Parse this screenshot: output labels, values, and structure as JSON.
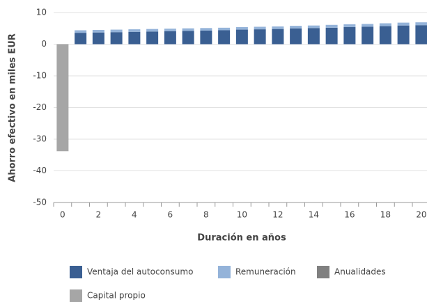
{
  "chart_data": {
    "type": "bar",
    "stacked": true,
    "xlabel": "Duración en años",
    "ylabel": "Ahorro efectivo en miles EUR",
    "x": [
      0,
      1,
      2,
      3,
      4,
      5,
      6,
      7,
      8,
      9,
      10,
      11,
      12,
      13,
      14,
      15,
      16,
      17,
      18,
      19,
      20
    ],
    "xticks": [
      0,
      2,
      4,
      6,
      8,
      10,
      12,
      14,
      16,
      18,
      20
    ],
    "ylim": [
      -50,
      10
    ],
    "yticks": [
      -50,
      -40,
      -30,
      -20,
      -10,
      0,
      10
    ],
    "grid": true,
    "series": [
      {
        "name": "Ventaja del autoconsumo",
        "color": "#3a5f92",
        "values": [
          null,
          3.6,
          3.7,
          3.8,
          3.9,
          4.0,
          4.1,
          4.2,
          4.3,
          4.4,
          4.6,
          4.7,
          4.8,
          5.0,
          5.1,
          5.2,
          5.4,
          5.5,
          5.7,
          5.9,
          6.0
        ]
      },
      {
        "name": "Remuneración",
        "color": "#94b3d9",
        "values": [
          null,
          0.8,
          0.8,
          0.8,
          0.8,
          0.8,
          0.8,
          0.8,
          0.8,
          0.8,
          0.8,
          0.8,
          0.8,
          0.8,
          0.8,
          0.9,
          0.9,
          0.9,
          0.9,
          0.9,
          0.9
        ]
      },
      {
        "name": "Anualidades",
        "color": "#808080",
        "values": [
          null,
          null,
          null,
          null,
          null,
          null,
          null,
          null,
          null,
          null,
          null,
          null,
          null,
          null,
          null,
          null,
          null,
          null,
          null,
          null,
          null
        ]
      },
      {
        "name": "Capital propio",
        "color": "#a6a6a6",
        "values": [
          -33.8,
          null,
          null,
          null,
          null,
          null,
          null,
          null,
          null,
          null,
          null,
          null,
          null,
          null,
          null,
          null,
          null,
          null,
          null,
          null,
          null
        ]
      }
    ]
  }
}
